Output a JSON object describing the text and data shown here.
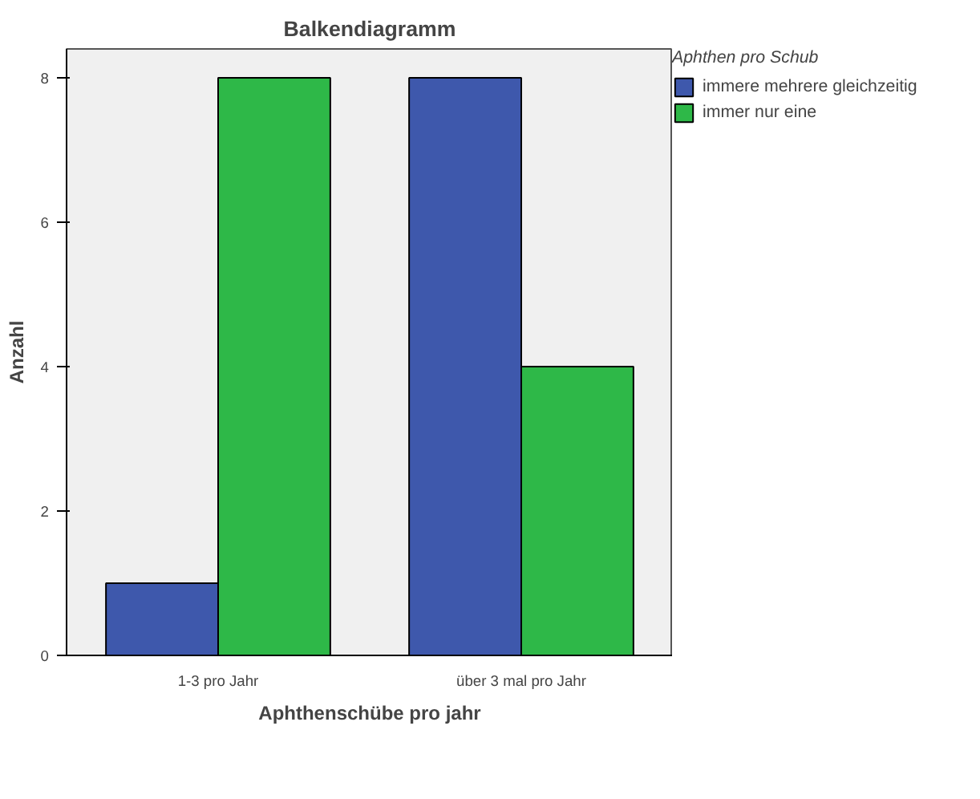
{
  "chart_data": {
    "type": "bar",
    "title": "Balkendiagramm",
    "xlabel": "Aphthenschübe pro jahr",
    "ylabel": "Anzahl",
    "legend_title": "Aphthen pro Schub",
    "categories": [
      "1-3 pro Jahr",
      "über 3 mal pro Jahr"
    ],
    "series": [
      {
        "name": "immere mehrere gleichzeitig",
        "color": "#3e58ac",
        "values": [
          1,
          8
        ]
      },
      {
        "name": "immer nur eine",
        "color": "#2eb848",
        "values": [
          8,
          4
        ]
      }
    ],
    "ylim": [
      0,
      8.4
    ],
    "yticks": [
      0,
      2,
      4,
      6,
      8
    ],
    "legend": "top right"
  }
}
